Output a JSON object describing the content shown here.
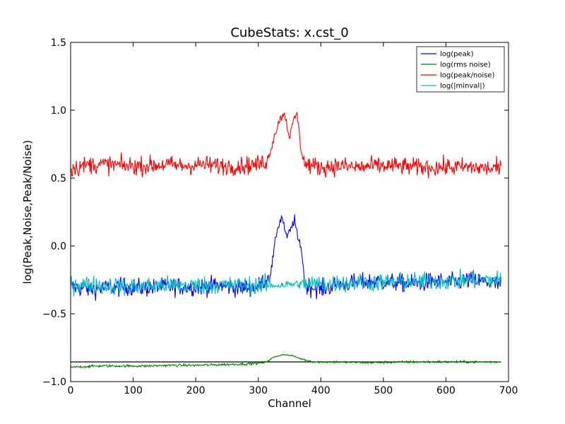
{
  "chart_data": {
    "type": "line",
    "title": "CubeStats: x.cst_0",
    "xlabel": "Channel",
    "ylabel": "log(Peak,Noise,Peak/Noise)",
    "xlim": [
      0,
      700
    ],
    "ylim": [
      -1.0,
      1.5
    ],
    "xticks": [
      "0",
      "100",
      "200",
      "300",
      "400",
      "500",
      "600",
      "700"
    ],
    "yticks": [
      "−1.0",
      "−0.5",
      "0.0",
      "0.5",
      "1.0",
      "1.5"
    ],
    "legend_position": "top-right",
    "grid": false,
    "x_range": [
      0,
      688
    ],
    "reference_line": {
      "y": -0.855,
      "color": "#000000"
    },
    "series": [
      {
        "name": "log(peak)",
        "color": "#0000ff",
        "points": [
          [
            0,
            -0.3
          ],
          [
            30,
            -0.32
          ],
          [
            60,
            -0.31
          ],
          [
            90,
            -0.3
          ],
          [
            120,
            -0.31
          ],
          [
            150,
            -0.3
          ],
          [
            180,
            -0.3
          ],
          [
            210,
            -0.3
          ],
          [
            240,
            -0.29
          ],
          [
            270,
            -0.31
          ],
          [
            300,
            -0.3
          ],
          [
            320,
            -0.2
          ],
          [
            330,
            0.12
          ],
          [
            338,
            0.22
          ],
          [
            345,
            0.06
          ],
          [
            352,
            0.12
          ],
          [
            358,
            0.2
          ],
          [
            363,
            0.05
          ],
          [
            368,
            0.01
          ],
          [
            375,
            -0.29
          ],
          [
            400,
            -0.32
          ],
          [
            430,
            -0.28
          ],
          [
            460,
            -0.27
          ],
          [
            490,
            -0.26
          ],
          [
            520,
            -0.27
          ],
          [
            550,
            -0.28
          ],
          [
            580,
            -0.26
          ],
          [
            610,
            -0.27
          ],
          [
            640,
            -0.25
          ],
          [
            670,
            -0.27
          ],
          [
            688,
            -0.29
          ]
        ]
      },
      {
        "name": "log(rms noise)",
        "color": "#008000",
        "points": [
          [
            0,
            -0.895
          ],
          [
            40,
            -0.885
          ],
          [
            80,
            -0.885
          ],
          [
            120,
            -0.885
          ],
          [
            160,
            -0.88
          ],
          [
            200,
            -0.88
          ],
          [
            240,
            -0.875
          ],
          [
            280,
            -0.87
          ],
          [
            310,
            -0.86
          ],
          [
            325,
            -0.82
          ],
          [
            340,
            -0.8
          ],
          [
            355,
            -0.81
          ],
          [
            370,
            -0.835
          ],
          [
            390,
            -0.855
          ],
          [
            420,
            -0.855
          ],
          [
            480,
            -0.86
          ],
          [
            540,
            -0.855
          ],
          [
            600,
            -0.855
          ],
          [
            650,
            -0.855
          ],
          [
            688,
            -0.855
          ]
        ]
      },
      {
        "name": "log(peak/noise)",
        "color": "#ff0000",
        "points": [
          [
            0,
            0.57
          ],
          [
            30,
            0.6
          ],
          [
            60,
            0.6
          ],
          [
            90,
            0.59
          ],
          [
            120,
            0.59
          ],
          [
            150,
            0.6
          ],
          [
            180,
            0.59
          ],
          [
            210,
            0.6
          ],
          [
            240,
            0.59
          ],
          [
            270,
            0.59
          ],
          [
            300,
            0.6
          ],
          [
            315,
            0.63
          ],
          [
            325,
            0.8
          ],
          [
            335,
            0.94
          ],
          [
            342,
            0.98
          ],
          [
            350,
            0.8
          ],
          [
            357,
            0.93
          ],
          [
            362,
            0.98
          ],
          [
            368,
            0.72
          ],
          [
            375,
            0.6
          ],
          [
            400,
            0.58
          ],
          [
            430,
            0.59
          ],
          [
            460,
            0.58
          ],
          [
            490,
            0.59
          ],
          [
            520,
            0.59
          ],
          [
            550,
            0.58
          ],
          [
            580,
            0.58
          ],
          [
            610,
            0.58
          ],
          [
            640,
            0.58
          ],
          [
            670,
            0.57
          ],
          [
            688,
            0.57
          ]
        ]
      },
      {
        "name": "log(|minval|)",
        "color": "#00bfbf",
        "points": [
          [
            0,
            -0.28
          ],
          [
            50,
            -0.29
          ],
          [
            100,
            -0.3
          ],
          [
            150,
            -0.29
          ],
          [
            200,
            -0.29
          ],
          [
            250,
            -0.29
          ],
          [
            300,
            -0.29
          ],
          [
            330,
            -0.29
          ],
          [
            360,
            -0.28
          ],
          [
            400,
            -0.28
          ],
          [
            450,
            -0.27
          ],
          [
            500,
            -0.27
          ],
          [
            550,
            -0.26
          ],
          [
            600,
            -0.26
          ],
          [
            650,
            -0.25
          ],
          [
            688,
            -0.25
          ]
        ]
      }
    ]
  }
}
